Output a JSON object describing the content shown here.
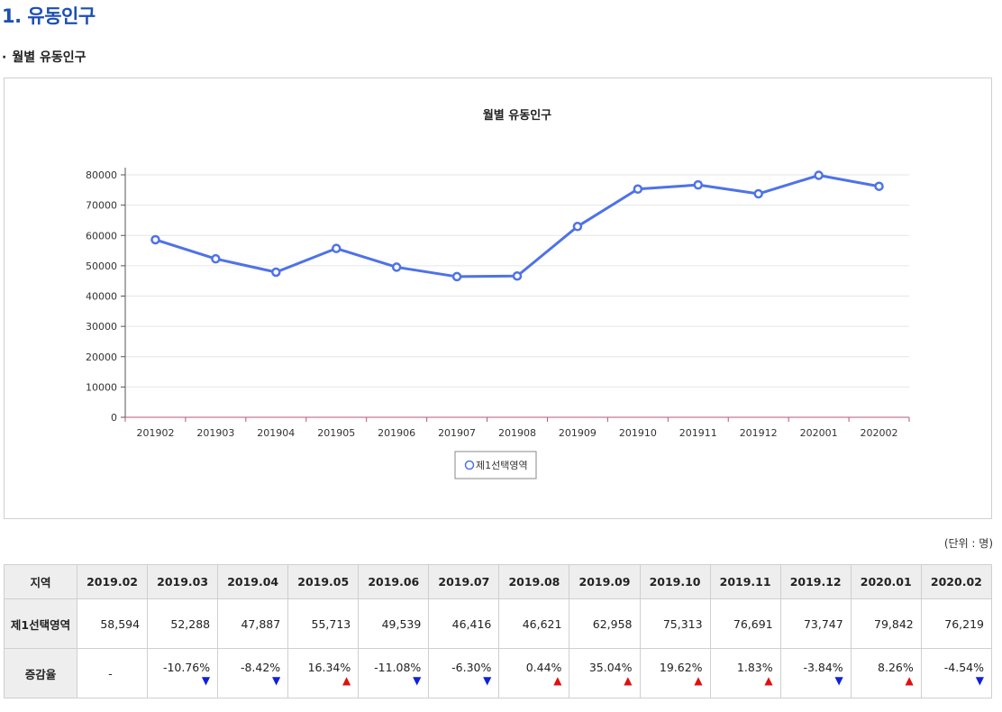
{
  "section": {
    "title": "1. 유동인구"
  },
  "subsection": {
    "bullet": "·",
    "title": "월별 유동인구"
  },
  "colors": {
    "line": "#4e72e8",
    "up": "#e01010",
    "down": "#1020d8"
  },
  "chart_data": {
    "type": "line",
    "title": "월별 유동인구",
    "categories": [
      "201902",
      "201903",
      "201904",
      "201905",
      "201906",
      "201907",
      "201908",
      "201909",
      "201910",
      "201911",
      "201912",
      "202001",
      "202002"
    ],
    "series": [
      {
        "name": "제1선택영역",
        "values": [
          58594,
          52288,
          47887,
          55713,
          49539,
          46416,
          46621,
          62958,
          75313,
          76691,
          73747,
          79842,
          76219
        ]
      }
    ],
    "yticks": [
      0,
      10000,
      20000,
      30000,
      40000,
      50000,
      60000,
      70000,
      80000
    ],
    "ylim": [
      0,
      80000
    ],
    "legend": "bottom-center",
    "grid": true
  },
  "table": {
    "unit": "(단위 : 명)",
    "region_header": "지역",
    "months": [
      "2019.02",
      "2019.03",
      "2019.04",
      "2019.05",
      "2019.06",
      "2019.07",
      "2019.08",
      "2019.09",
      "2019.10",
      "2019.11",
      "2019.12",
      "2020.01",
      "2020.02"
    ],
    "value_row": {
      "label": "제1선택영역",
      "values": [
        "58,594",
        "52,288",
        "47,887",
        "55,713",
        "49,539",
        "46,416",
        "46,621",
        "62,958",
        "75,313",
        "76,691",
        "73,747",
        "79,842",
        "76,219"
      ]
    },
    "rate_row": {
      "label": "증감율",
      "rates": [
        "-",
        "-10.76%",
        "-8.42%",
        "16.34%",
        "-11.08%",
        "-6.30%",
        "0.44%",
        "35.04%",
        "19.62%",
        "1.83%",
        "-3.84%",
        "8.26%",
        "-4.54%"
      ],
      "directions": [
        "none",
        "down",
        "down",
        "up",
        "down",
        "down",
        "up",
        "up",
        "up",
        "up",
        "down",
        "up",
        "down"
      ]
    }
  }
}
